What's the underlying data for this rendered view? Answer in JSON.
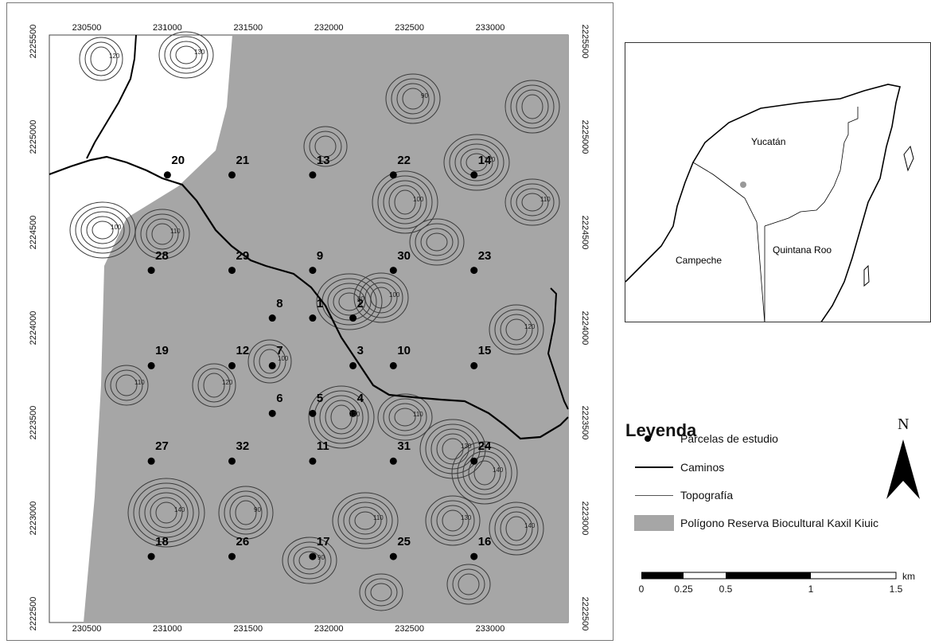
{
  "colors": {
    "reserve_fill": "#a6a6a6",
    "contour": "#3a3a3a",
    "road": "#000000",
    "inset_reserve": "#999999"
  },
  "map": {
    "x_ticks": [
      "230500",
      "231000",
      "231500",
      "232000",
      "232500",
      "233000"
    ],
    "y_ticks": [
      "2225500",
      "2225000",
      "2224500",
      "2224000",
      "2223500",
      "2223000",
      "2222500"
    ],
    "plots": [
      {
        "id": "20",
        "x": 231000,
        "y": 2224800
      },
      {
        "id": "21",
        "x": 231400,
        "y": 2224800
      },
      {
        "id": "13",
        "x": 231900,
        "y": 2224800
      },
      {
        "id": "22",
        "x": 232400,
        "y": 2224800
      },
      {
        "id": "14",
        "x": 232900,
        "y": 2224800
      },
      {
        "id": "28",
        "x": 230900,
        "y": 2224300
      },
      {
        "id": "29",
        "x": 231400,
        "y": 2224300
      },
      {
        "id": "9",
        "x": 231900,
        "y": 2224300
      },
      {
        "id": "30",
        "x": 232400,
        "y": 2224300
      },
      {
        "id": "23",
        "x": 232900,
        "y": 2224300
      },
      {
        "id": "8",
        "x": 231650,
        "y": 2224050
      },
      {
        "id": "1",
        "x": 231900,
        "y": 2224050
      },
      {
        "id": "2",
        "x": 232150,
        "y": 2224050
      },
      {
        "id": "19",
        "x": 230900,
        "y": 2223800
      },
      {
        "id": "12",
        "x": 231400,
        "y": 2223800
      },
      {
        "id": "7",
        "x": 231650,
        "y": 2223800
      },
      {
        "id": "3",
        "x": 232150,
        "y": 2223800
      },
      {
        "id": "10",
        "x": 232400,
        "y": 2223800
      },
      {
        "id": "15",
        "x": 232900,
        "y": 2223800
      },
      {
        "id": "6",
        "x": 231650,
        "y": 2223550
      },
      {
        "id": "5",
        "x": 231900,
        "y": 2223550
      },
      {
        "id": "4",
        "x": 232150,
        "y": 2223550
      },
      {
        "id": "27",
        "x": 230900,
        "y": 2223300
      },
      {
        "id": "32",
        "x": 231400,
        "y": 2223300
      },
      {
        "id": "11",
        "x": 231900,
        "y": 2223300
      },
      {
        "id": "31",
        "x": 232400,
        "y": 2223300
      },
      {
        "id": "24",
        "x": 232900,
        "y": 2223300
      },
      {
        "id": "18",
        "x": 230900,
        "y": 2222800
      },
      {
        "id": "26",
        "x": 231400,
        "y": 2222800
      },
      {
        "id": "17",
        "x": 231900,
        "y": 2222800
      },
      {
        "id": "25",
        "x": 232400,
        "y": 2222800
      },
      {
        "id": "16",
        "x": 232900,
        "y": 2222800
      }
    ],
    "contour_labels": [
      "100",
      "110",
      "120",
      "130",
      "140",
      "90",
      "80",
      "100",
      "120",
      "110",
      "130",
      "140",
      "120",
      "90",
      "100",
      "110",
      "130",
      "140",
      "110",
      "120",
      "100",
      "90",
      "110",
      "120"
    ]
  },
  "inset": {
    "states": {
      "yucatan": "Yucatán",
      "campeche": "Campeche",
      "quintana_roo": "Quintana Roo"
    }
  },
  "legend": {
    "title": "Leyenda",
    "items": {
      "plots": "Parcelas de estudio",
      "roads": "Caminos",
      "topo": "Topografía",
      "reserve": "Polígono Reserva Biocultural Kaxil Kiuic"
    },
    "north": "N",
    "scale": {
      "labels": [
        "0",
        "0.25",
        "0.5",
        "1",
        "1.5"
      ],
      "unit": "km"
    }
  }
}
